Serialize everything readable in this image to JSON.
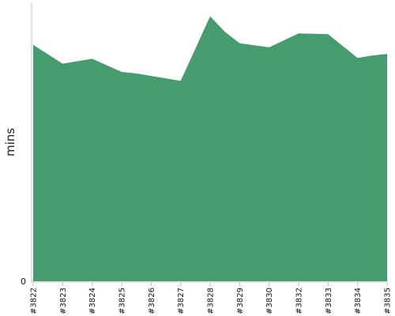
{
  "chart_data": {
    "type": "area",
    "title": "",
    "xlabel": "",
    "ylabel": "mins",
    "categories": [
      "#3822",
      "#3823",
      "#3824",
      "#3825",
      "#3826",
      "#3827",
      "#3828",
      "#3829",
      "#3830",
      "#3832",
      "#3833",
      "#3834",
      "#3835"
    ],
    "y_tick_labels": [
      "0"
    ],
    "ylim": [
      0,
      34
    ],
    "grid": false,
    "legend": "none",
    "series": [
      {
        "points": [
          {
            "x": "#3822",
            "y": 28.9
          },
          {
            "x": "#3823",
            "y": 26.6
          },
          {
            "x": "#3824",
            "y": 27.2
          },
          {
            "x": "#3825",
            "y": 25.6
          },
          {
            "x": "#3825-#3826",
            "y": 25.4
          },
          {
            "x": "#3826",
            "y": 25.1
          },
          {
            "x": "#3827",
            "y": 24.5
          },
          {
            "x": "#3828",
            "y": 32.4
          },
          {
            "x": "#3828-#3829",
            "y": 30.5
          },
          {
            "x": "#3829",
            "y": 29.1
          },
          {
            "x": "#3830",
            "y": 28.6
          },
          {
            "x": "#3832",
            "y": 30.3
          },
          {
            "x": "#3833",
            "y": 30.2
          },
          {
            "x": "#3834",
            "y": 27.3
          },
          {
            "x": "#3834-#3835",
            "y": 27.6
          },
          {
            "x": "#3835",
            "y": 27.8
          }
        ],
        "color": "#479c6d"
      }
    ],
    "colors": {
      "axis": "#c4c4c4",
      "fill": "#479c6d"
    }
  }
}
